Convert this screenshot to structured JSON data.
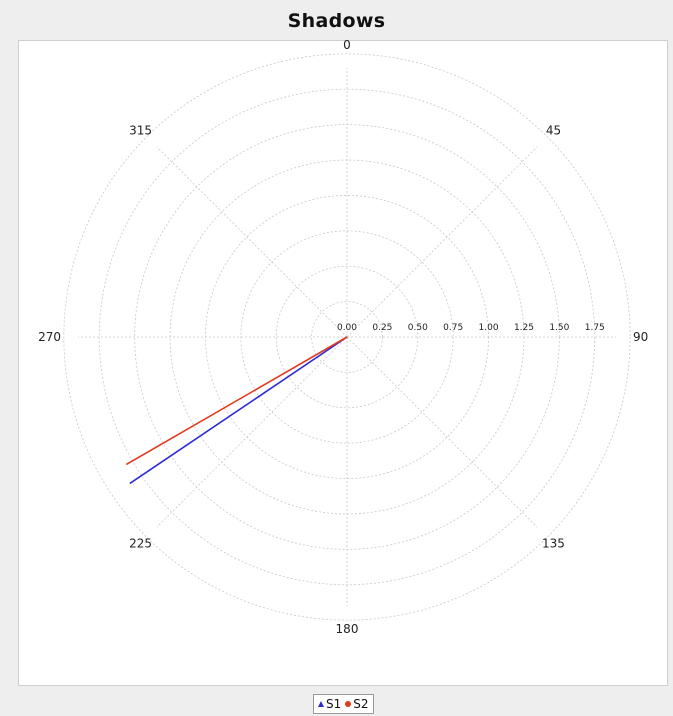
{
  "chart_data": {
    "type": "polar-line",
    "title": "Shadows",
    "angle_labels": [
      {
        "angle": 0,
        "label": "0"
      },
      {
        "angle": 45,
        "label": "45"
      },
      {
        "angle": 90,
        "label": "90"
      },
      {
        "angle": 135,
        "label": "135"
      },
      {
        "angle": 180,
        "label": "180"
      },
      {
        "angle": 225,
        "label": "225"
      },
      {
        "angle": 270,
        "label": "270"
      },
      {
        "angle": 315,
        "label": "315"
      }
    ],
    "radial_ticks": [
      "0.00",
      "0.25",
      "0.50",
      "0.75",
      "1.00",
      "1.25",
      "1.50",
      "1.75"
    ],
    "radial_range": [
      0,
      1.9
    ],
    "grid": true,
    "legend_position": "bottom-center",
    "series": [
      {
        "name": "S1",
        "color": "#2b2bd6",
        "marker": "triangle",
        "points": [
          {
            "angle": 0,
            "r": 0
          },
          {
            "angle": 236,
            "r": 1.85
          }
        ]
      },
      {
        "name": "S2",
        "color": "#e03a1f",
        "marker": "circle",
        "points": [
          {
            "angle": 0,
            "r": 0
          },
          {
            "angle": 240,
            "r": 1.8
          }
        ]
      }
    ]
  }
}
